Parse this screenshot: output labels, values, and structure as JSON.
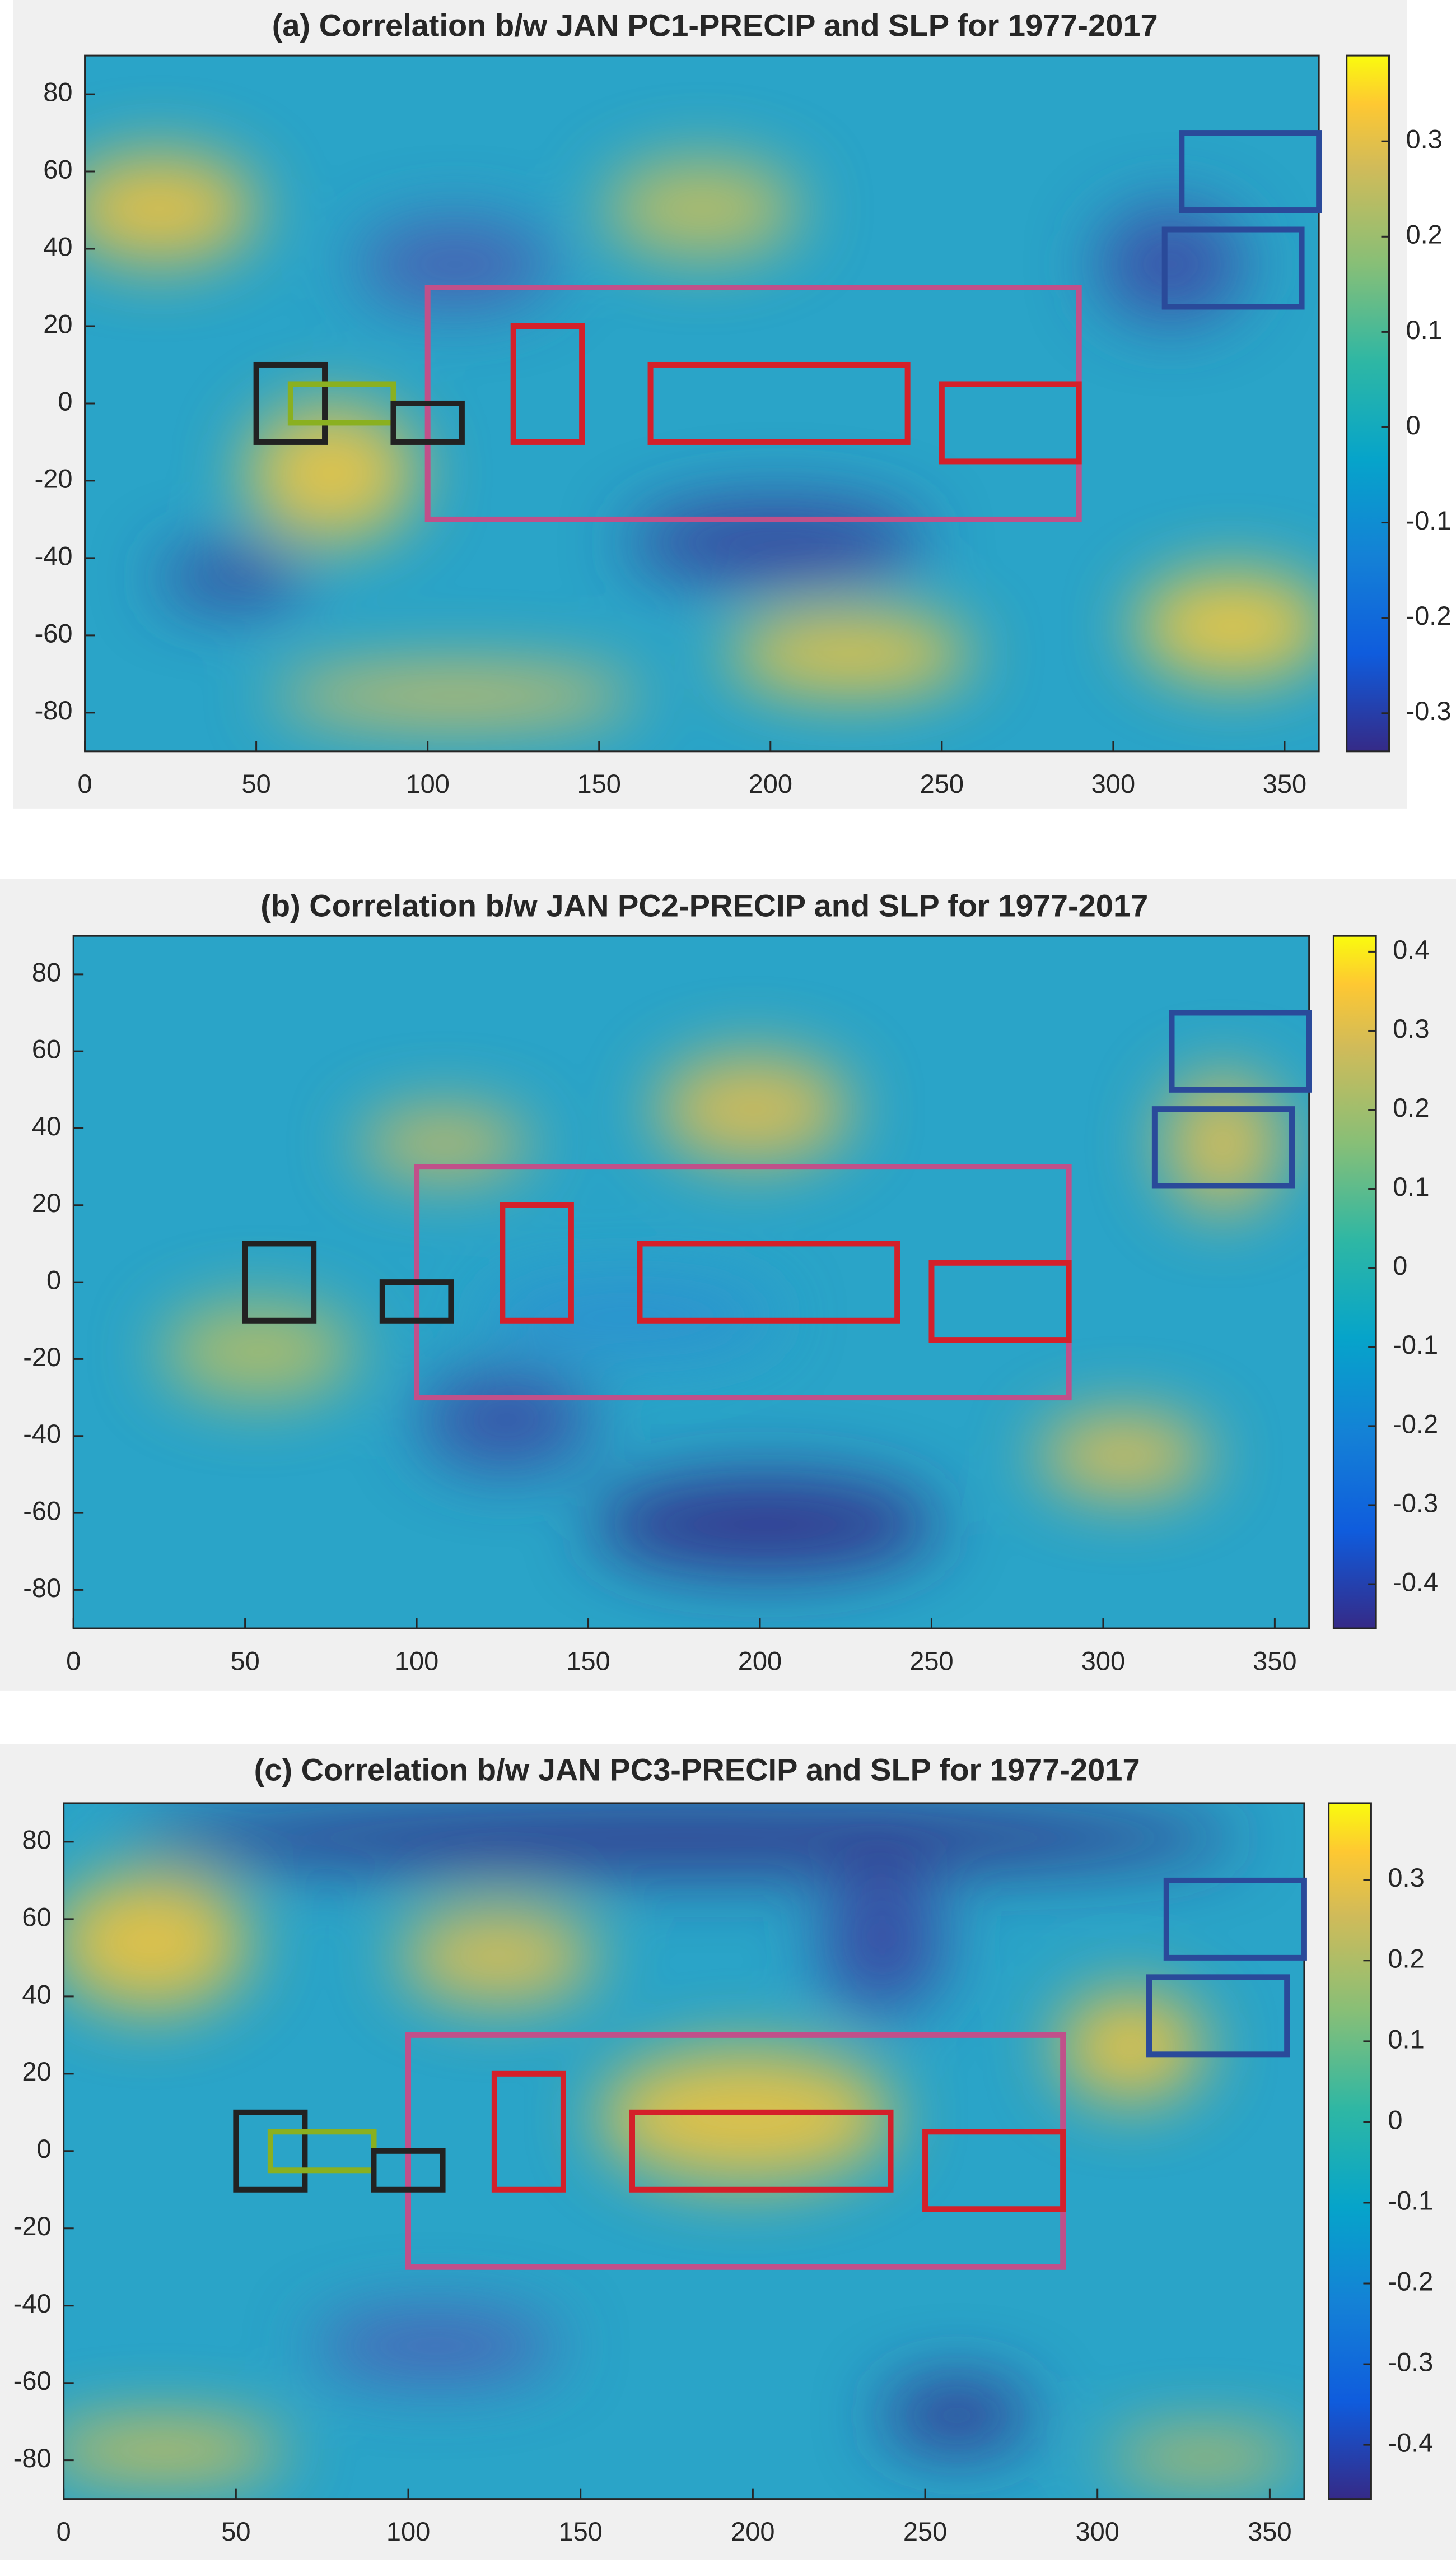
{
  "chart_data": [
    {
      "type": "heatmap",
      "title": "(a) Correlation b/w JAN PC1-PRECIP and SLP for 1977-2017",
      "xlim": [
        0,
        360
      ],
      "ylim": [
        -90,
        90
      ],
      "xticks": [
        0,
        50,
        100,
        150,
        200,
        250,
        300,
        350
      ],
      "yticks": [
        -80,
        -60,
        -40,
        -20,
        0,
        20,
        40,
        60,
        80
      ],
      "clim": [
        -0.34,
        0.39
      ],
      "cticks": [
        -0.3,
        -0.2,
        -0.1,
        0,
        0.1,
        0.2,
        0.3
      ],
      "boxes": [
        {
          "lon": [
            100,
            290
          ],
          "lat": [
            -30,
            30
          ],
          "color": "#c0508a"
        },
        {
          "lon": [
            125,
            145
          ],
          "lat": [
            -10,
            20
          ],
          "color": "#d4202a"
        },
        {
          "lon": [
            165,
            240
          ],
          "lat": [
            -10,
            10
          ],
          "color": "#d4202a"
        },
        {
          "lon": [
            250,
            290
          ],
          "lat": [
            -15,
            5
          ],
          "color": "#d4202a"
        },
        {
          "lon": [
            50,
            70
          ],
          "lat": [
            -10,
            10
          ],
          "color": "#222222"
        },
        {
          "lon": [
            60,
            90
          ],
          "lat": [
            -5,
            5
          ],
          "color": "#8ab020"
        },
        {
          "lon": [
            90,
            110
          ],
          "lat": [
            -10,
            0
          ],
          "color": "#222222"
        },
        {
          "lon": [
            320,
            360
          ],
          "lat": [
            50,
            70
          ],
          "color": "#2a4a9a"
        },
        {
          "lon": [
            315,
            355
          ],
          "lat": [
            25,
            45
          ],
          "color": "#2a4a9a"
        }
      ]
    },
    {
      "type": "heatmap",
      "title": "(b) Correlation b/w JAN PC2-PRECIP and SLP for 1977-2017",
      "xlim": [
        0,
        360
      ],
      "ylim": [
        -90,
        90
      ],
      "xticks": [
        0,
        50,
        100,
        150,
        200,
        250,
        300,
        350
      ],
      "yticks": [
        -80,
        -60,
        -40,
        -20,
        0,
        20,
        40,
        60,
        80
      ],
      "clim": [
        -0.456,
        0.42
      ],
      "cticks": [
        -0.4,
        -0.3,
        -0.2,
        -0.1,
        0,
        0.1,
        0.2,
        0.3,
        0.4
      ],
      "boxes": [
        {
          "lon": [
            100,
            290
          ],
          "lat": [
            -30,
            30
          ],
          "color": "#c0508a"
        },
        {
          "lon": [
            125,
            145
          ],
          "lat": [
            -10,
            20
          ],
          "color": "#d4202a"
        },
        {
          "lon": [
            165,
            240
          ],
          "lat": [
            -10,
            10
          ],
          "color": "#d4202a"
        },
        {
          "lon": [
            250,
            290
          ],
          "lat": [
            -15,
            5
          ],
          "color": "#d4202a"
        },
        {
          "lon": [
            50,
            70
          ],
          "lat": [
            -10,
            10
          ],
          "color": "#222222"
        },
        {
          "lon": [
            90,
            110
          ],
          "lat": [
            -10,
            0
          ],
          "color": "#222222"
        },
        {
          "lon": [
            320,
            360
          ],
          "lat": [
            50,
            70
          ],
          "color": "#2a4a9a"
        },
        {
          "lon": [
            315,
            355
          ],
          "lat": [
            25,
            45
          ],
          "color": "#2a4a9a"
        }
      ]
    },
    {
      "type": "heatmap",
      "title": "(c) Correlation b/w JAN PC3-PRECIP and SLP for 1977-2017",
      "xlim": [
        0,
        360
      ],
      "ylim": [
        -90,
        90
      ],
      "xticks": [
        0,
        50,
        100,
        150,
        200,
        250,
        300,
        350
      ],
      "yticks": [
        -80,
        -60,
        -40,
        -20,
        0,
        20,
        40,
        60,
        80
      ],
      "clim": [
        -0.467,
        0.395
      ],
      "cticks": [
        -0.4,
        -0.3,
        -0.2,
        -0.1,
        0,
        0.1,
        0.2,
        0.3
      ],
      "boxes": [
        {
          "lon": [
            100,
            290
          ],
          "lat": [
            -30,
            30
          ],
          "color": "#c0508a"
        },
        {
          "lon": [
            125,
            145
          ],
          "lat": [
            -10,
            20
          ],
          "color": "#d4202a"
        },
        {
          "lon": [
            165,
            240
          ],
          "lat": [
            -10,
            10
          ],
          "color": "#d4202a"
        },
        {
          "lon": [
            250,
            290
          ],
          "lat": [
            -15,
            5
          ],
          "color": "#d4202a"
        },
        {
          "lon": [
            50,
            70
          ],
          "lat": [
            -10,
            10
          ],
          "color": "#222222"
        },
        {
          "lon": [
            60,
            90
          ],
          "lat": [
            -5,
            5
          ],
          "color": "#8ab020"
        },
        {
          "lon": [
            90,
            110
          ],
          "lat": [
            -10,
            0
          ],
          "color": "#222222"
        },
        {
          "lon": [
            320,
            360
          ],
          "lat": [
            50,
            70
          ],
          "color": "#2a4a9a"
        },
        {
          "lon": [
            315,
            355
          ],
          "lat": [
            25,
            45
          ],
          "color": "#2a4a9a"
        }
      ]
    }
  ]
}
